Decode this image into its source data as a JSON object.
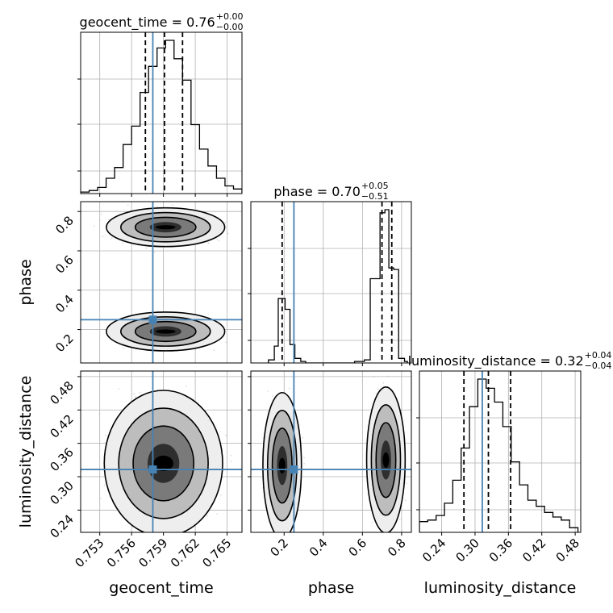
{
  "colors": {
    "truth": "#4682b4",
    "hist": "#000000",
    "grid": "#b0b0b0",
    "scatter": "#9a9a9a"
  },
  "chart_data": {
    "type": "corner",
    "parameters": [
      "geocent_time",
      "phase",
      "luminosity_distance"
    ],
    "truths": {
      "geocent_time": 0.758,
      "phase": 0.25,
      "luminosity_distance": 0.313
    },
    "titles": [
      {
        "param": "geocent_time",
        "text": "geocent_time = 0.76",
        "plus": "+0.00",
        "minus": "−0.00"
      },
      {
        "param": "phase",
        "text": "phase = 0.70",
        "plus": "+0.05",
        "minus": "−0.51"
      },
      {
        "param": "luminosity_distance",
        "text": "luminosity_distance = 0.32",
        "plus": "+0.04",
        "minus": "−0.04"
      }
    ],
    "quantiles": {
      "geocent_time": [
        0.7573,
        0.7591,
        0.7608
      ],
      "phase": [
        0.19,
        0.7,
        0.75
      ],
      "luminosity_distance": [
        0.28,
        0.324,
        0.364
      ]
    },
    "ranges": {
      "geocent_time": [
        0.7512,
        0.7664
      ],
      "phase": [
        0.03,
        0.85
      ],
      "luminosity_distance": [
        0.2,
        0.49
      ]
    },
    "ticks": {
      "geocent_time": [
        {
          "v": 0.753,
          "label": "0.753"
        },
        {
          "v": 0.756,
          "label": "0.756"
        },
        {
          "v": 0.759,
          "label": "0.759"
        },
        {
          "v": 0.762,
          "label": "0.762"
        },
        {
          "v": 0.765,
          "label": "0.765"
        }
      ],
      "phase": [
        {
          "v": 0.2,
          "label": "0.2"
        },
        {
          "v": 0.4,
          "label": "0.4"
        },
        {
          "v": 0.6,
          "label": "0.6"
        },
        {
          "v": 0.8,
          "label": "0.8"
        }
      ],
      "luminosity_distance": [
        {
          "v": 0.24,
          "label": "0.24"
        },
        {
          "v": 0.3,
          "label": "0.30"
        },
        {
          "v": 0.36,
          "label": "0.36"
        },
        {
          "v": 0.42,
          "label": "0.42"
        },
        {
          "v": 0.48,
          "label": "0.48"
        }
      ]
    },
    "marginals": {
      "geocent_time": [
        [
          0.7512,
          0.752,
          0.01
        ],
        [
          0.752,
          0.7528,
          0.02
        ],
        [
          0.7528,
          0.7536,
          0.04
        ],
        [
          0.7536,
          0.7544,
          0.1
        ],
        [
          0.7544,
          0.7552,
          0.17
        ],
        [
          0.7552,
          0.756,
          0.32
        ],
        [
          0.756,
          0.7568,
          0.44
        ],
        [
          0.7568,
          0.7576,
          0.66
        ],
        [
          0.7576,
          0.7584,
          0.83
        ],
        [
          0.7584,
          0.7592,
          0.95
        ],
        [
          0.7592,
          0.76,
          1.0
        ],
        [
          0.76,
          0.7608,
          0.88
        ],
        [
          0.7608,
          0.7616,
          0.74
        ],
        [
          0.7616,
          0.7624,
          0.45
        ],
        [
          0.7624,
          0.7632,
          0.29
        ],
        [
          0.7632,
          0.764,
          0.18
        ],
        [
          0.764,
          0.7648,
          0.1
        ],
        [
          0.7648,
          0.7656,
          0.05
        ],
        [
          0.7656,
          0.7664,
          0.03
        ]
      ],
      "phase": [
        [
          0.12,
          0.15,
          0.02
        ],
        [
          0.15,
          0.17,
          0.11
        ],
        [
          0.17,
          0.205,
          0.42
        ],
        [
          0.205,
          0.23,
          0.35
        ],
        [
          0.23,
          0.255,
          0.12
        ],
        [
          0.255,
          0.285,
          0.03
        ],
        [
          0.285,
          0.31,
          0.01
        ],
        [
          0.56,
          0.61,
          0.01
        ],
        [
          0.61,
          0.64,
          0.02
        ],
        [
          0.64,
          0.67,
          0.55
        ],
        [
          0.67,
          0.69,
          0.55
        ],
        [
          0.69,
          0.715,
          0.98
        ],
        [
          0.715,
          0.735,
          1.0
        ],
        [
          0.735,
          0.76,
          0.62
        ],
        [
          0.76,
          0.785,
          0.61
        ],
        [
          0.785,
          0.815,
          0.03
        ],
        [
          0.815,
          0.83,
          0.01
        ]
      ],
      "luminosity_distance": [
        [
          0.2,
          0.215,
          0.07
        ],
        [
          0.215,
          0.23,
          0.08
        ],
        [
          0.23,
          0.245,
          0.11
        ],
        [
          0.245,
          0.26,
          0.19
        ],
        [
          0.26,
          0.275,
          0.34
        ],
        [
          0.275,
          0.29,
          0.55
        ],
        [
          0.29,
          0.305,
          0.82
        ],
        [
          0.305,
          0.32,
          1.0
        ],
        [
          0.32,
          0.335,
          0.94
        ],
        [
          0.335,
          0.35,
          0.85
        ],
        [
          0.35,
          0.365,
          0.69
        ],
        [
          0.365,
          0.38,
          0.46
        ],
        [
          0.38,
          0.395,
          0.31
        ],
        [
          0.395,
          0.41,
          0.21
        ],
        [
          0.41,
          0.425,
          0.17
        ],
        [
          0.425,
          0.44,
          0.13
        ],
        [
          0.44,
          0.455,
          0.1
        ],
        [
          0.455,
          0.47,
          0.08
        ],
        [
          0.47,
          0.485,
          0.03
        ]
      ]
    },
    "joint_modes": {
      "phase|geocent_time": [
        {
          "cx": 0.7592,
          "cy": 0.72,
          "sx": 0.0017,
          "sy": 0.03,
          "n": 2600
        },
        {
          "cx": 0.7592,
          "cy": 0.19,
          "sx": 0.0017,
          "sy": 0.03,
          "n": 1100
        }
      ],
      "luminosity_distance|geocent_time": [
        {
          "cx": 0.759,
          "cy": 0.324,
          "sx": 0.0017,
          "sy": 0.04,
          "n": 3600
        }
      ],
      "luminosity_distance|phase": [
        {
          "cx": 0.72,
          "cy": 0.33,
          "sx": 0.03,
          "sy": 0.04,
          "n": 2600
        },
        {
          "cx": 0.19,
          "cy": 0.32,
          "sx": 0.03,
          "sy": 0.04,
          "n": 1000
        }
      ]
    },
    "contour_sigmas": [
      0.55,
      1.05,
      1.55,
      2.05
    ],
    "xlabels": [
      "geocent_time",
      "phase",
      "luminosity_distance"
    ],
    "ylabels": [
      "",
      "phase",
      "luminosity_distance"
    ],
    "grid": true
  }
}
